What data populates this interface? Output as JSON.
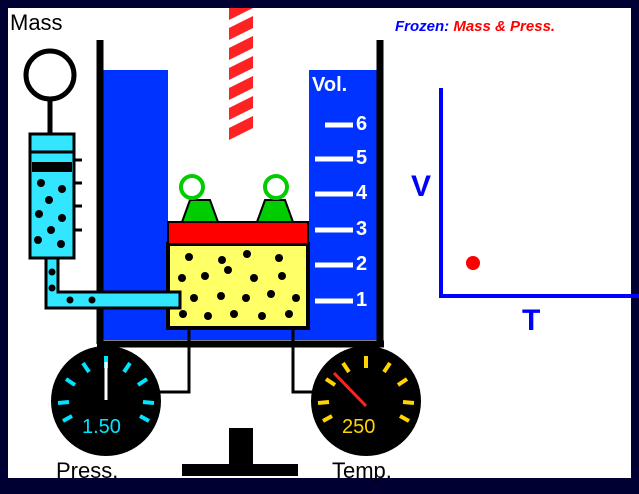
{
  "labels": {
    "mass": "Mass",
    "pressure": "Press.",
    "temperature": "Temp.",
    "volume": "Vol.",
    "graph_v": "V",
    "graph_t": "T"
  },
  "frozen": {
    "prefix": "Frozen:",
    "mass": "Mass",
    "press": "& Press."
  },
  "volume_ticks": [
    "6",
    "5",
    "4",
    "3",
    "2",
    "1"
  ],
  "gauges": {
    "pressure_value": "1.50",
    "temperature_value": "250"
  },
  "colors": {
    "water": "#0033ff",
    "gas": "#ffff66",
    "piston": "#ff0000",
    "weights": "#00cc00",
    "tube": "#33e6ff",
    "pressure_display": "#00e5ff",
    "temperature_display": "#ffd400",
    "graph_point": "#ff0000",
    "axes": "#0000ff"
  }
}
